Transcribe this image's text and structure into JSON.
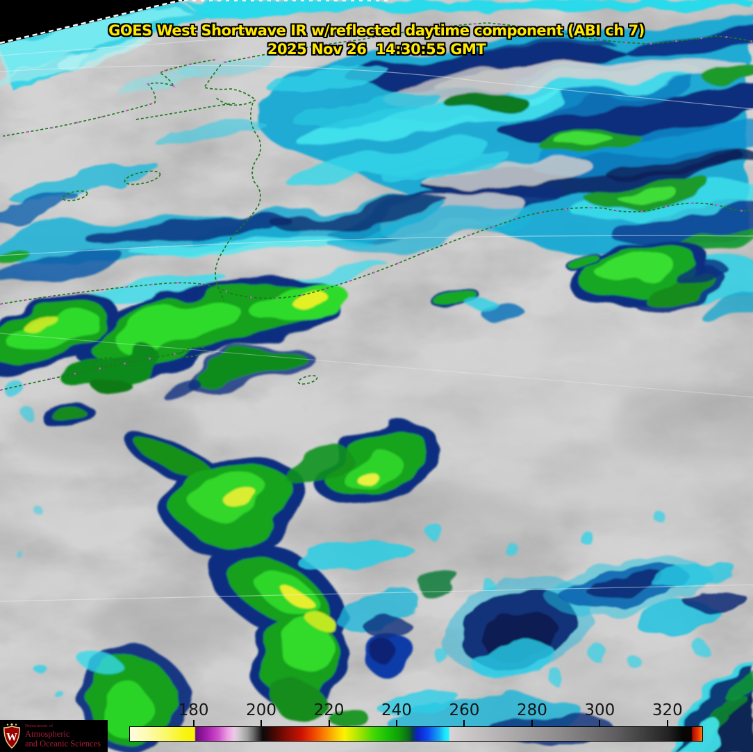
{
  "title": {
    "line1": "GOES West Shortwave IR w/reflected daytime component (ABI ch 7)",
    "line2": "2025 Nov 26  14:30:55 GMT"
  },
  "colorbar": {
    "min": 161,
    "max": 330.5,
    "tick_values": [
      180,
      200,
      220,
      240,
      260,
      280,
      300,
      320
    ],
    "border_color": "#000000",
    "label_color": "#141414",
    "stops": [
      {
        "p": 0,
        "c": "#fffde2"
      },
      {
        "p": 3,
        "c": "#fdfbb0"
      },
      {
        "p": 7,
        "c": "#faf75a"
      },
      {
        "p": 10,
        "c": "#f8f408"
      },
      {
        "p": 11.3,
        "c": "#f8f408"
      },
      {
        "p": 11.5,
        "c": "#6e0a7e"
      },
      {
        "p": 13.5,
        "c": "#a71fae"
      },
      {
        "p": 15.5,
        "c": "#cf52cc"
      },
      {
        "p": 17,
        "c": "#eb9ce2"
      },
      {
        "p": 18.2,
        "c": "#ecc9e6"
      },
      {
        "p": 19,
        "c": "#d0c9ce"
      },
      {
        "p": 20.5,
        "c": "#9f9f9f"
      },
      {
        "p": 21.5,
        "c": "#6f6f6f"
      },
      {
        "p": 23.2,
        "c": "#0a0a0a"
      },
      {
        "p": 25,
        "c": "#420704"
      },
      {
        "p": 27.5,
        "c": "#8c0c04"
      },
      {
        "p": 30,
        "c": "#cc1203"
      },
      {
        "p": 32,
        "c": "#ee4202"
      },
      {
        "p": 34,
        "c": "#fa8202"
      },
      {
        "p": 36,
        "c": "#fcc803"
      },
      {
        "p": 37.5,
        "c": "#fcf303"
      },
      {
        "p": 40,
        "c": "#a8e503"
      },
      {
        "p": 42.5,
        "c": "#47d805"
      },
      {
        "p": 45,
        "c": "#17c006"
      },
      {
        "p": 47,
        "c": "#0f9e07"
      },
      {
        "p": 48.6,
        "c": "#0b6f14"
      },
      {
        "p": 49.4,
        "c": "#0a3f52"
      },
      {
        "p": 50.2,
        "c": "#0b20c4"
      },
      {
        "p": 52,
        "c": "#0d48f0"
      },
      {
        "p": 54,
        "c": "#12a5f5"
      },
      {
        "p": 55,
        "c": "#1fe2fa"
      },
      {
        "p": 55.7,
        "c": "#22f5fd"
      },
      {
        "p": 55.9,
        "c": "#d8d4d6"
      },
      {
        "p": 58,
        "c": "#cfcbcd"
      },
      {
        "p": 65,
        "c": "#b3b0b2"
      },
      {
        "p": 75,
        "c": "#8e8b8d"
      },
      {
        "p": 85,
        "c": "#5f5d5f"
      },
      {
        "p": 94,
        "c": "#242324"
      },
      {
        "p": 96.5,
        "c": "#060606"
      },
      {
        "p": 98.1,
        "c": "#120202"
      },
      {
        "p": 98.3,
        "c": "#a21003"
      },
      {
        "p": 99.2,
        "c": "#e83102"
      },
      {
        "p": 100,
        "c": "#ff7b03"
      }
    ]
  },
  "logo": {
    "dept_prefix": "Department of",
    "line1": "Atmospheric",
    "line2": "and Oceanic Sciences",
    "crest_letter": "W",
    "background": "#000000",
    "text_color": "#a51e38",
    "crest_red": "#9b0000",
    "crest_gold": "#e7d086"
  },
  "palette": {
    "ocean_gray": "#b5b5b5",
    "cloud_cyan": "#2ad9ea",
    "cloud_blue": "#0e7ec2",
    "cloud_navy": "#0a2d7c",
    "cloud_green": "#17a41f",
    "cloud_bright_green": "#31d72b",
    "cloud_yellow": "#ecef32",
    "coastline_green": "#1e7a1e",
    "coastline_magenta": "#f24ff2",
    "space_black": "#000000",
    "title_yellow": "#ffe900",
    "graticule_white": "#f0f0f0"
  }
}
